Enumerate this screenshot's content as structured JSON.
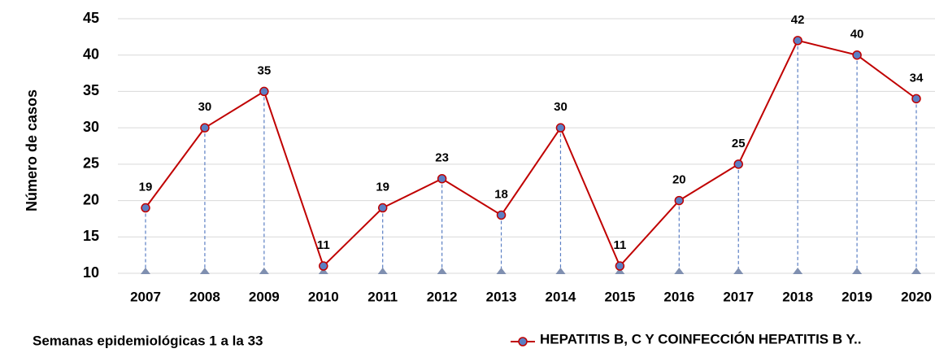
{
  "chart_data": {
    "type": "line",
    "ylabel": "Número de casos",
    "xlabel": "Semanas epidemiológicas 1 a la 33",
    "categories": [
      "2007",
      "2008",
      "2009",
      "2010",
      "2011",
      "2012",
      "2013",
      "2014",
      "2015",
      "2016",
      "2017",
      "2018",
      "2019",
      "2020"
    ],
    "series": [
      {
        "name": "HEPATITIS B, C Y COINFECCIÓN HEPATITIS B Y..",
        "color": "#c00000",
        "marker_color": "#5b7fc4",
        "values": [
          19,
          30,
          35,
          11,
          19,
          23,
          18,
          30,
          11,
          20,
          25,
          42,
          40,
          34
        ]
      }
    ],
    "ylim": [
      10,
      45
    ],
    "yticks": [
      10,
      15,
      20,
      25,
      30,
      35,
      40,
      45
    ],
    "grid": true,
    "drop_lines": true,
    "legend": "bottom-right"
  }
}
